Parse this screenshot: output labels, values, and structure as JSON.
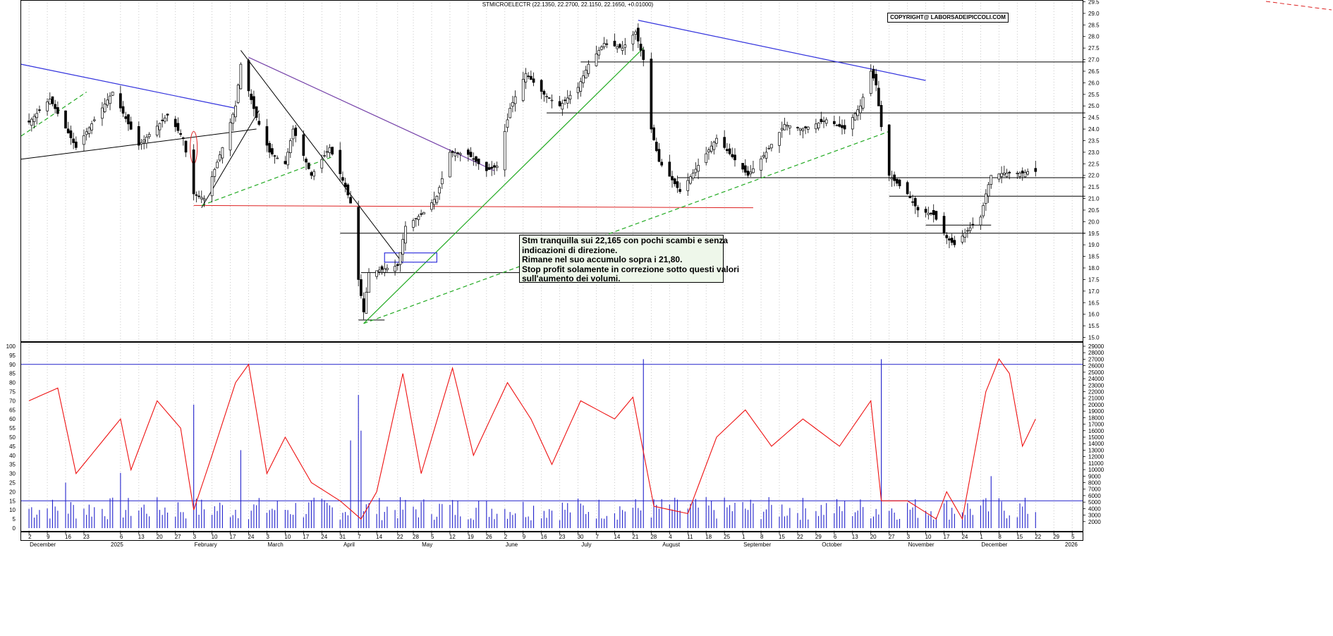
{
  "header": {
    "title": "STMICROELECTR (22.1350, 22.2700, 22.1150, 22.1650, +0.01000)",
    "copyright": "COPYRIGHT@ LABORSADEIPICCOLI.COM"
  },
  "annotation": {
    "lines": [
      "Stm tranquilla sui 22,165 con pochi scambi e senza",
      "indicazioni di direzione.",
      "Rimane nel suo accumulo sopra i 21,80.",
      "Stop profit solamente in correzione sotto questi valori",
      "sull'aumento dei volumi."
    ]
  },
  "colors": {
    "trend_blue": "#3333dd",
    "trend_purple": "#7744aa",
    "trend_green": "#22aa22",
    "support_red": "#dd2222",
    "oscillator": "#ee1111",
    "volume": "#2222cc",
    "level_line": "#000000"
  },
  "chart_data": [
    {
      "type": "candlestick",
      "name": "price",
      "ylim": [
        15.0,
        29.5
      ],
      "y_ticks": [
        "15.0",
        "15.5",
        "16.0",
        "16.5",
        "17.0",
        "17.5",
        "18.0",
        "18.5",
        "19.0",
        "19.5",
        "20.0",
        "20.5",
        "21.0",
        "21.5",
        "22.0",
        "22.5",
        "23.0",
        "23.5",
        "24.0",
        "24.5",
        "25.0",
        "25.5",
        "26.0",
        "26.5",
        "27.0",
        "27.5",
        "28.0",
        "28.5",
        "29.0",
        "29.5"
      ],
      "last": {
        "open": 22.135,
        "high": 22.27,
        "low": 22.115,
        "close": 22.165,
        "change": 0.01
      },
      "anchors": [
        {
          "date": "2024-12-02",
          "close": 24.3
        },
        {
          "date": "2024-12-10",
          "close": 25.3
        },
        {
          "date": "2024-12-20",
          "close": 23.2
        },
        {
          "date": "2025-01-03",
          "close": 25.6
        },
        {
          "date": "2025-01-13",
          "close": 23.3
        },
        {
          "date": "2025-01-24",
          "close": 24.6
        },
        {
          "date": "2025-01-30",
          "close": 23.6
        },
        {
          "date": "2025-02-03",
          "close": 21.2
        },
        {
          "date": "2025-02-07",
          "close": 21.0
        },
        {
          "date": "2025-02-14",
          "close": 23.2
        },
        {
          "date": "2025-02-19",
          "close": 25.0
        },
        {
          "date": "2025-02-21",
          "close": 26.8
        },
        {
          "date": "2025-02-27",
          "close": 24.5
        },
        {
          "date": "2025-03-04",
          "close": 23.0
        },
        {
          "date": "2025-03-10",
          "close": 22.5
        },
        {
          "date": "2025-03-13",
          "close": 24.0
        },
        {
          "date": "2025-03-20",
          "close": 22.0
        },
        {
          "date": "2025-03-27",
          "close": 23.2
        },
        {
          "date": "2025-04-02",
          "close": 21.5
        },
        {
          "date": "2025-04-04",
          "close": 20.8
        },
        {
          "date": "2025-04-07",
          "close": 17.5
        },
        {
          "date": "2025-04-09",
          "close": 16.1
        },
        {
          "date": "2025-04-11",
          "close": 17.8
        },
        {
          "date": "2025-04-22",
          "close": 18.1
        },
        {
          "date": "2025-04-25",
          "close": 19.8
        },
        {
          "date": "2025-05-02",
          "close": 20.4
        },
        {
          "date": "2025-05-07",
          "close": 21.1
        },
        {
          "date": "2025-05-12",
          "close": 23.0
        },
        {
          "date": "2025-05-19",
          "close": 22.9
        },
        {
          "date": "2025-05-26",
          "close": 22.2
        },
        {
          "date": "2025-05-30",
          "close": 22.4
        },
        {
          "date": "2025-06-04",
          "close": 24.9
        },
        {
          "date": "2025-06-10",
          "close": 26.4
        },
        {
          "date": "2025-06-17",
          "close": 25.5
        },
        {
          "date": "2025-06-23",
          "close": 25.0
        },
        {
          "date": "2025-06-30",
          "close": 25.8
        },
        {
          "date": "2025-07-04",
          "close": 26.8
        },
        {
          "date": "2025-07-10",
          "close": 27.7
        },
        {
          "date": "2025-07-17",
          "close": 27.5
        },
        {
          "date": "2025-07-22",
          "close": 28.2
        },
        {
          "date": "2025-07-25",
          "close": 27.0
        },
        {
          "date": "2025-07-28",
          "close": 24.0
        },
        {
          "date": "2025-07-31",
          "close": 22.6
        },
        {
          "date": "2025-08-05",
          "close": 21.8
        },
        {
          "date": "2025-08-08",
          "close": 21.3
        },
        {
          "date": "2025-08-13",
          "close": 22.1
        },
        {
          "date": "2025-08-22",
          "close": 23.6
        },
        {
          "date": "2025-08-28",
          "close": 22.8
        },
        {
          "date": "2025-09-03",
          "close": 22.0
        },
        {
          "date": "2025-09-10",
          "close": 23.0
        },
        {
          "date": "2025-09-17",
          "close": 24.2
        },
        {
          "date": "2025-09-24",
          "close": 24.0
        },
        {
          "date": "2025-10-03",
          "close": 24.4
        },
        {
          "date": "2025-10-10",
          "close": 24.0
        },
        {
          "date": "2025-10-16",
          "close": 25.0
        },
        {
          "date": "2025-10-20",
          "close": 26.5
        },
        {
          "date": "2025-10-22",
          "close": 25.9
        },
        {
          "date": "2025-10-24",
          "close": 24.1
        },
        {
          "date": "2025-10-27",
          "close": 22.0
        },
        {
          "date": "2025-11-03",
          "close": 21.2
        },
        {
          "date": "2025-11-07",
          "close": 20.5
        },
        {
          "date": "2025-11-13",
          "close": 20.3
        },
        {
          "date": "2025-11-18",
          "close": 19.3
        },
        {
          "date": "2025-11-21",
          "close": 19.0
        },
        {
          "date": "2025-11-25",
          "close": 19.5
        },
        {
          "date": "2025-12-01",
          "close": 20.2
        },
        {
          "date": "2025-12-03",
          "close": 21.2
        },
        {
          "date": "2025-12-05",
          "close": 22.0
        },
        {
          "date": "2025-12-10",
          "close": 22.1
        },
        {
          "date": "2025-12-17",
          "close": 22.1
        },
        {
          "date": "2025-12-19",
          "close": 22.165
        }
      ],
      "levels": [
        {
          "price": 26.9,
          "from": "2025-07-01",
          "to": "2026-01-10"
        },
        {
          "price": 24.7,
          "from": "2025-06-18",
          "to": "2026-01-10"
        },
        {
          "price": 21.9,
          "from": "2025-08-07",
          "to": "2026-01-10"
        },
        {
          "price": 21.1,
          "from": "2025-10-27",
          "to": "2026-01-10"
        },
        {
          "price": 19.85,
          "from": "2025-11-10",
          "to": "2025-12-05"
        },
        {
          "price": 19.5,
          "from": "2025-03-31",
          "to": "2026-01-10"
        },
        {
          "price": 17.8,
          "from": "2025-04-08",
          "to": "2025-06-20"
        },
        {
          "price": 15.75,
          "from": "2025-04-07",
          "to": "2025-04-17"
        }
      ]
    },
    {
      "type": "line+bar",
      "name": "oscillator_volume",
      "left_ylim": [
        0,
        100
      ],
      "left_ticks": [
        "0",
        "5",
        "10",
        "15",
        "20",
        "25",
        "30",
        "35",
        "40",
        "45",
        "50",
        "55",
        "60",
        "65",
        "70",
        "75",
        "80",
        "85",
        "90",
        "95",
        "100"
      ],
      "right_ylim": [
        0,
        29000
      ],
      "right_ticks": [
        "2000",
        "3000",
        "4000",
        "5000",
        "6000",
        "7000",
        "8000",
        "9000",
        "10000",
        "11000",
        "12000",
        "13000",
        "14000",
        "15000",
        "16000",
        "17000",
        "18000",
        "19000",
        "20000",
        "21000",
        "22000",
        "23000",
        "24000",
        "25000",
        "26000",
        "27000",
        "28000",
        "29000"
      ],
      "reference_lines": [
        90,
        15
      ],
      "oscillator_anchors": [
        {
          "date": "2024-12-02",
          "value": 70
        },
        {
          "date": "2024-12-13",
          "value": 77
        },
        {
          "date": "2024-12-20",
          "value": 30
        },
        {
          "date": "2025-01-06",
          "value": 60
        },
        {
          "date": "2025-01-10",
          "value": 32
        },
        {
          "date": "2025-01-20",
          "value": 70
        },
        {
          "date": "2025-01-29",
          "value": 55
        },
        {
          "date": "2025-02-03",
          "value": 10
        },
        {
          "date": "2025-02-10",
          "value": 40
        },
        {
          "date": "2025-02-19",
          "value": 80
        },
        {
          "date": "2025-02-24",
          "value": 90
        },
        {
          "date": "2025-03-03",
          "value": 30
        },
        {
          "date": "2025-03-10",
          "value": 50
        },
        {
          "date": "2025-03-20",
          "value": 25
        },
        {
          "date": "2025-03-31",
          "value": 15
        },
        {
          "date": "2025-04-08",
          "value": 5
        },
        {
          "date": "2025-04-14",
          "value": 20
        },
        {
          "date": "2025-04-24",
          "value": 85
        },
        {
          "date": "2025-05-01",
          "value": 30
        },
        {
          "date": "2025-05-13",
          "value": 88
        },
        {
          "date": "2025-05-21",
          "value": 40
        },
        {
          "date": "2025-06-03",
          "value": 80
        },
        {
          "date": "2025-06-12",
          "value": 60
        },
        {
          "date": "2025-06-20",
          "value": 35
        },
        {
          "date": "2025-07-01",
          "value": 70
        },
        {
          "date": "2025-07-14",
          "value": 60
        },
        {
          "date": "2025-07-21",
          "value": 72
        },
        {
          "date": "2025-07-29",
          "value": 12
        },
        {
          "date": "2025-08-11",
          "value": 8
        },
        {
          "date": "2025-08-22",
          "value": 50
        },
        {
          "date": "2025-09-02",
          "value": 65
        },
        {
          "date": "2025-09-12",
          "value": 45
        },
        {
          "date": "2025-09-24",
          "value": 60
        },
        {
          "date": "2025-10-08",
          "value": 45
        },
        {
          "date": "2025-10-20",
          "value": 70
        },
        {
          "date": "2025-10-24",
          "value": 15
        },
        {
          "date": "2025-11-03",
          "value": 15
        },
        {
          "date": "2025-11-14",
          "value": 5
        },
        {
          "date": "2025-11-18",
          "value": 20
        },
        {
          "date": "2025-11-24",
          "value": 5
        },
        {
          "date": "2025-12-03",
          "value": 75
        },
        {
          "date": "2025-12-08",
          "value": 93
        },
        {
          "date": "2025-12-12",
          "value": 85
        },
        {
          "date": "2025-12-17",
          "value": 45
        },
        {
          "date": "2025-12-22",
          "value": 60
        }
      ],
      "volume_spikes": [
        {
          "date": "2024-12-16",
          "volume": 8000
        },
        {
          "date": "2025-01-06",
          "volume": 9500
        },
        {
          "date": "2025-02-03",
          "volume": 20000
        },
        {
          "date": "2025-02-21",
          "volume": 13000
        },
        {
          "date": "2025-04-04",
          "volume": 14500
        },
        {
          "date": "2025-04-07",
          "volume": 21500
        },
        {
          "date": "2025-04-08",
          "volume": 16000
        },
        {
          "date": "2025-07-25",
          "volume": 27000
        },
        {
          "date": "2025-10-24",
          "volume": 27000
        },
        {
          "date": "2025-12-05",
          "volume": 9000
        }
      ]
    }
  ],
  "x_axis": {
    "months": [
      {
        "label": "December",
        "date": "2024-12-02"
      },
      {
        "label": "2025",
        "date": "2025-01-02"
      },
      {
        "label": "February",
        "date": "2025-02-03"
      },
      {
        "label": "March",
        "date": "2025-03-03"
      },
      {
        "label": "April",
        "date": "2025-04-01"
      },
      {
        "label": "May",
        "date": "2025-05-01"
      },
      {
        "label": "June",
        "date": "2025-06-02"
      },
      {
        "label": "July",
        "date": "2025-07-01"
      },
      {
        "label": "August",
        "date": "2025-08-01"
      },
      {
        "label": "September",
        "date": "2025-09-01"
      },
      {
        "label": "October",
        "date": "2025-10-01"
      },
      {
        "label": "November",
        "date": "2025-11-03"
      },
      {
        "label": "December",
        "date": "2025-12-01"
      },
      {
        "label": "2026",
        "date": "2026-01-02"
      }
    ],
    "day_ticks": [
      {
        "label": "2",
        "date": "2024-12-02"
      },
      {
        "label": "9",
        "date": "2024-12-09"
      },
      {
        "label": "16",
        "date": "2024-12-16"
      },
      {
        "label": "23",
        "date": "2024-12-23"
      },
      {
        "label": "6",
        "date": "2025-01-06"
      },
      {
        "label": "13",
        "date": "2025-01-13"
      },
      {
        "label": "20",
        "date": "2025-01-20"
      },
      {
        "label": "27",
        "date": "2025-01-27"
      },
      {
        "label": "3",
        "date": "2025-02-03"
      },
      {
        "label": "10",
        "date": "2025-02-10"
      },
      {
        "label": "17",
        "date": "2025-02-17"
      },
      {
        "label": "24",
        "date": "2025-02-24"
      },
      {
        "label": "3",
        "date": "2025-03-03"
      },
      {
        "label": "10",
        "date": "2025-03-10"
      },
      {
        "label": "17",
        "date": "2025-03-17"
      },
      {
        "label": "24",
        "date": "2025-03-24"
      },
      {
        "label": "31",
        "date": "2025-03-31"
      },
      {
        "label": "7",
        "date": "2025-04-07"
      },
      {
        "label": "14",
        "date": "2025-04-14"
      },
      {
        "label": "22",
        "date": "2025-04-22"
      },
      {
        "label": "28",
        "date": "2025-04-28"
      },
      {
        "label": "5",
        "date": "2025-05-05"
      },
      {
        "label": "12",
        "date": "2025-05-12"
      },
      {
        "label": "19",
        "date": "2025-05-19"
      },
      {
        "label": "26",
        "date": "2025-05-26"
      },
      {
        "label": "2",
        "date": "2025-06-02"
      },
      {
        "label": "9",
        "date": "2025-06-09"
      },
      {
        "label": "16",
        "date": "2025-06-16"
      },
      {
        "label": "23",
        "date": "2025-06-23"
      },
      {
        "label": "30",
        "date": "2025-06-30"
      },
      {
        "label": "7",
        "date": "2025-07-07"
      },
      {
        "label": "14",
        "date": "2025-07-14"
      },
      {
        "label": "21",
        "date": "2025-07-21"
      },
      {
        "label": "28",
        "date": "2025-07-28"
      },
      {
        "label": "4",
        "date": "2025-08-04"
      },
      {
        "label": "11",
        "date": "2025-08-11"
      },
      {
        "label": "18",
        "date": "2025-08-18"
      },
      {
        "label": "25",
        "date": "2025-08-25"
      },
      {
        "label": "1",
        "date": "2025-09-01"
      },
      {
        "label": "8",
        "date": "2025-09-08"
      },
      {
        "label": "15",
        "date": "2025-09-15"
      },
      {
        "label": "22",
        "date": "2025-09-22"
      },
      {
        "label": "29",
        "date": "2025-09-29"
      },
      {
        "label": "6",
        "date": "2025-10-06"
      },
      {
        "label": "13",
        "date": "2025-10-13"
      },
      {
        "label": "20",
        "date": "2025-10-20"
      },
      {
        "label": "27",
        "date": "2025-10-27"
      },
      {
        "label": "3",
        "date": "2025-11-03"
      },
      {
        "label": "10",
        "date": "2025-11-10"
      },
      {
        "label": "17",
        "date": "2025-11-17"
      },
      {
        "label": "24",
        "date": "2025-11-24"
      },
      {
        "label": "1",
        "date": "2025-12-01"
      },
      {
        "label": "8",
        "date": "2025-12-08"
      },
      {
        "label": "15",
        "date": "2025-12-15"
      },
      {
        "label": "22",
        "date": "2025-12-22"
      },
      {
        "label": "29",
        "date": "2025-12-29"
      },
      {
        "label": "5",
        "date": "2026-01-05"
      }
    ],
    "range": [
      "2024-11-29",
      "2026-01-09"
    ]
  }
}
